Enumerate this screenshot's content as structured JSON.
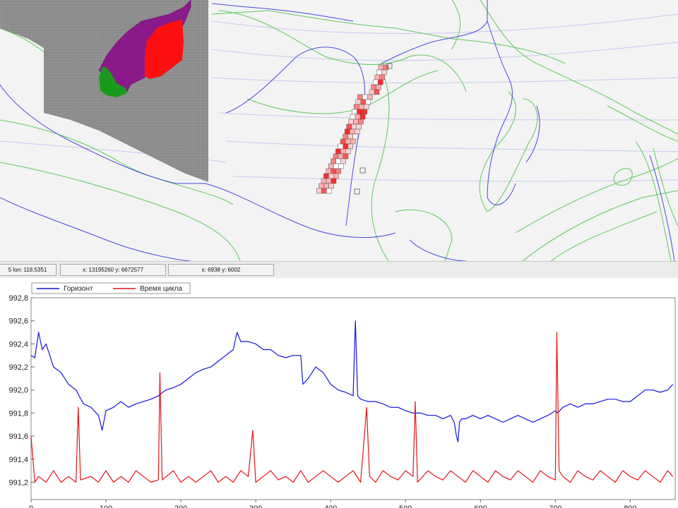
{
  "status_bar": {
    "latlon": "5 lon: 118.5351",
    "xy_world": "x: 13195260 y: 6672577",
    "xy_grid": "x: 6938 y: 6002"
  },
  "colors": {
    "contour_green": "#5cc85c",
    "contour_blue": "#4a4ae0",
    "contour_lavender": "#c8c8ee",
    "block_grey": "#8a8a8a",
    "block_purple": "#8a1a8a",
    "block_red": "#ff1010",
    "block_green": "#1a9a1a",
    "horizon_line": "#1414e6",
    "cycle_line": "#e61414"
  },
  "chart_data": {
    "type": "line",
    "legend": [
      "Горизонт",
      "Время цикла"
    ],
    "legend_placement": "top-left",
    "xlim": [
      0,
      860
    ],
    "ylim": [
      991.05,
      992.8
    ],
    "x_ticks": [
      0,
      100,
      200,
      300,
      400,
      500,
      600,
      700,
      800
    ],
    "y_ticks": [
      991.2,
      991.4,
      991.6,
      991.8,
      992.0,
      992.2,
      992.4,
      992.6,
      992.8
    ],
    "y_tick_labels": [
      "991,2",
      "991,4",
      "991,6",
      "991,8",
      "992,0",
      "992,2",
      "992,4",
      "992,6",
      "992,8"
    ],
    "series": [
      {
        "name": "Горизонт",
        "color": "#1414e6",
        "x": [
          0,
          5,
          10,
          15,
          20,
          30,
          40,
          50,
          60,
          70,
          80,
          90,
          95,
          100,
          110,
          120,
          130,
          140,
          150,
          160,
          170,
          180,
          190,
          200,
          210,
          220,
          230,
          240,
          250,
          260,
          270,
          275,
          280,
          290,
          300,
          310,
          320,
          330,
          340,
          350,
          360,
          363,
          370,
          380,
          390,
          400,
          410,
          420,
          430,
          433,
          436,
          440,
          450,
          460,
          470,
          480,
          490,
          500,
          510,
          520,
          530,
          540,
          550,
          560,
          565,
          568,
          570,
          572,
          575,
          580,
          590,
          600,
          610,
          620,
          630,
          640,
          650,
          660,
          670,
          680,
          690,
          700,
          703,
          710,
          720,
          730,
          740,
          750,
          760,
          770,
          780,
          790,
          800,
          810,
          820,
          830,
          840,
          850,
          857
        ],
        "y": [
          992.3,
          992.28,
          992.5,
          992.35,
          992.4,
          992.2,
          992.15,
          992.05,
          992.0,
          991.88,
          991.85,
          991.78,
          991.65,
          991.82,
          991.85,
          991.9,
          991.85,
          991.88,
          991.9,
          991.92,
          991.95,
          992.0,
          992.02,
          992.05,
          992.1,
          992.15,
          992.18,
          992.2,
          992.25,
          992.3,
          992.35,
          992.5,
          992.42,
          992.42,
          992.4,
          992.35,
          992.35,
          992.3,
          992.28,
          992.3,
          992.3,
          992.05,
          992.1,
          992.2,
          992.15,
          992.05,
          992.0,
          991.98,
          991.95,
          992.6,
          991.95,
          991.92,
          991.9,
          991.9,
          991.88,
          991.85,
          991.85,
          991.82,
          991.8,
          991.8,
          991.78,
          991.78,
          991.75,
          991.78,
          991.72,
          991.6,
          991.55,
          991.72,
          991.75,
          991.75,
          991.78,
          991.75,
          991.78,
          991.75,
          991.72,
          991.75,
          991.78,
          991.75,
          991.72,
          991.75,
          991.78,
          991.82,
          991.8,
          991.85,
          991.88,
          991.85,
          991.88,
          991.88,
          991.9,
          991.92,
          991.92,
          991.9,
          991.9,
          991.95,
          992.0,
          992.0,
          991.98,
          992.0,
          992.05
        ]
      },
      {
        "name": "Время цикла",
        "color": "#e61414",
        "x": [
          0,
          5,
          10,
          20,
          30,
          40,
          50,
          60,
          63,
          66,
          80,
          90,
          100,
          110,
          120,
          130,
          140,
          150,
          160,
          170,
          172,
          175,
          190,
          200,
          210,
          220,
          230,
          240,
          250,
          260,
          270,
          280,
          290,
          296,
          300,
          310,
          320,
          330,
          340,
          350,
          360,
          370,
          380,
          390,
          400,
          410,
          420,
          430,
          440,
          448,
          452,
          460,
          470,
          480,
          490,
          500,
          510,
          513,
          516,
          530,
          540,
          550,
          560,
          570,
          580,
          590,
          600,
          610,
          620,
          630,
          640,
          650,
          660,
          670,
          680,
          690,
          700,
          702,
          705,
          710,
          720,
          730,
          740,
          750,
          760,
          770,
          780,
          790,
          800,
          810,
          820,
          830,
          840,
          850,
          857
        ],
        "y": [
          991.6,
          991.2,
          991.25,
          991.2,
          991.3,
          991.2,
          991.25,
          991.2,
          991.85,
          991.22,
          991.25,
          991.2,
          991.3,
          991.2,
          991.25,
          991.2,
          991.3,
          991.25,
          991.2,
          991.22,
          992.15,
          991.22,
          991.3,
          991.2,
          991.25,
          991.2,
          991.25,
          991.3,
          991.2,
          991.25,
          991.2,
          991.3,
          991.25,
          991.65,
          991.2,
          991.25,
          991.3,
          991.22,
          991.25,
          991.2,
          991.3,
          991.2,
          991.25,
          991.3,
          991.25,
          991.2,
          991.25,
          991.3,
          991.2,
          991.85,
          991.25,
          991.2,
          991.3,
          991.25,
          991.22,
          991.3,
          991.25,
          991.9,
          991.2,
          991.3,
          991.25,
          991.22,
          991.3,
          991.25,
          991.2,
          991.3,
          991.25,
          991.2,
          991.3,
          991.25,
          991.22,
          991.3,
          991.25,
          991.2,
          991.3,
          991.25,
          991.22,
          992.5,
          991.3,
          991.25,
          991.2,
          991.3,
          991.25,
          991.22,
          991.3,
          991.25,
          991.2,
          991.3,
          991.25,
          991.22,
          991.3,
          991.25,
          991.2,
          991.3,
          991.25
        ]
      }
    ]
  }
}
